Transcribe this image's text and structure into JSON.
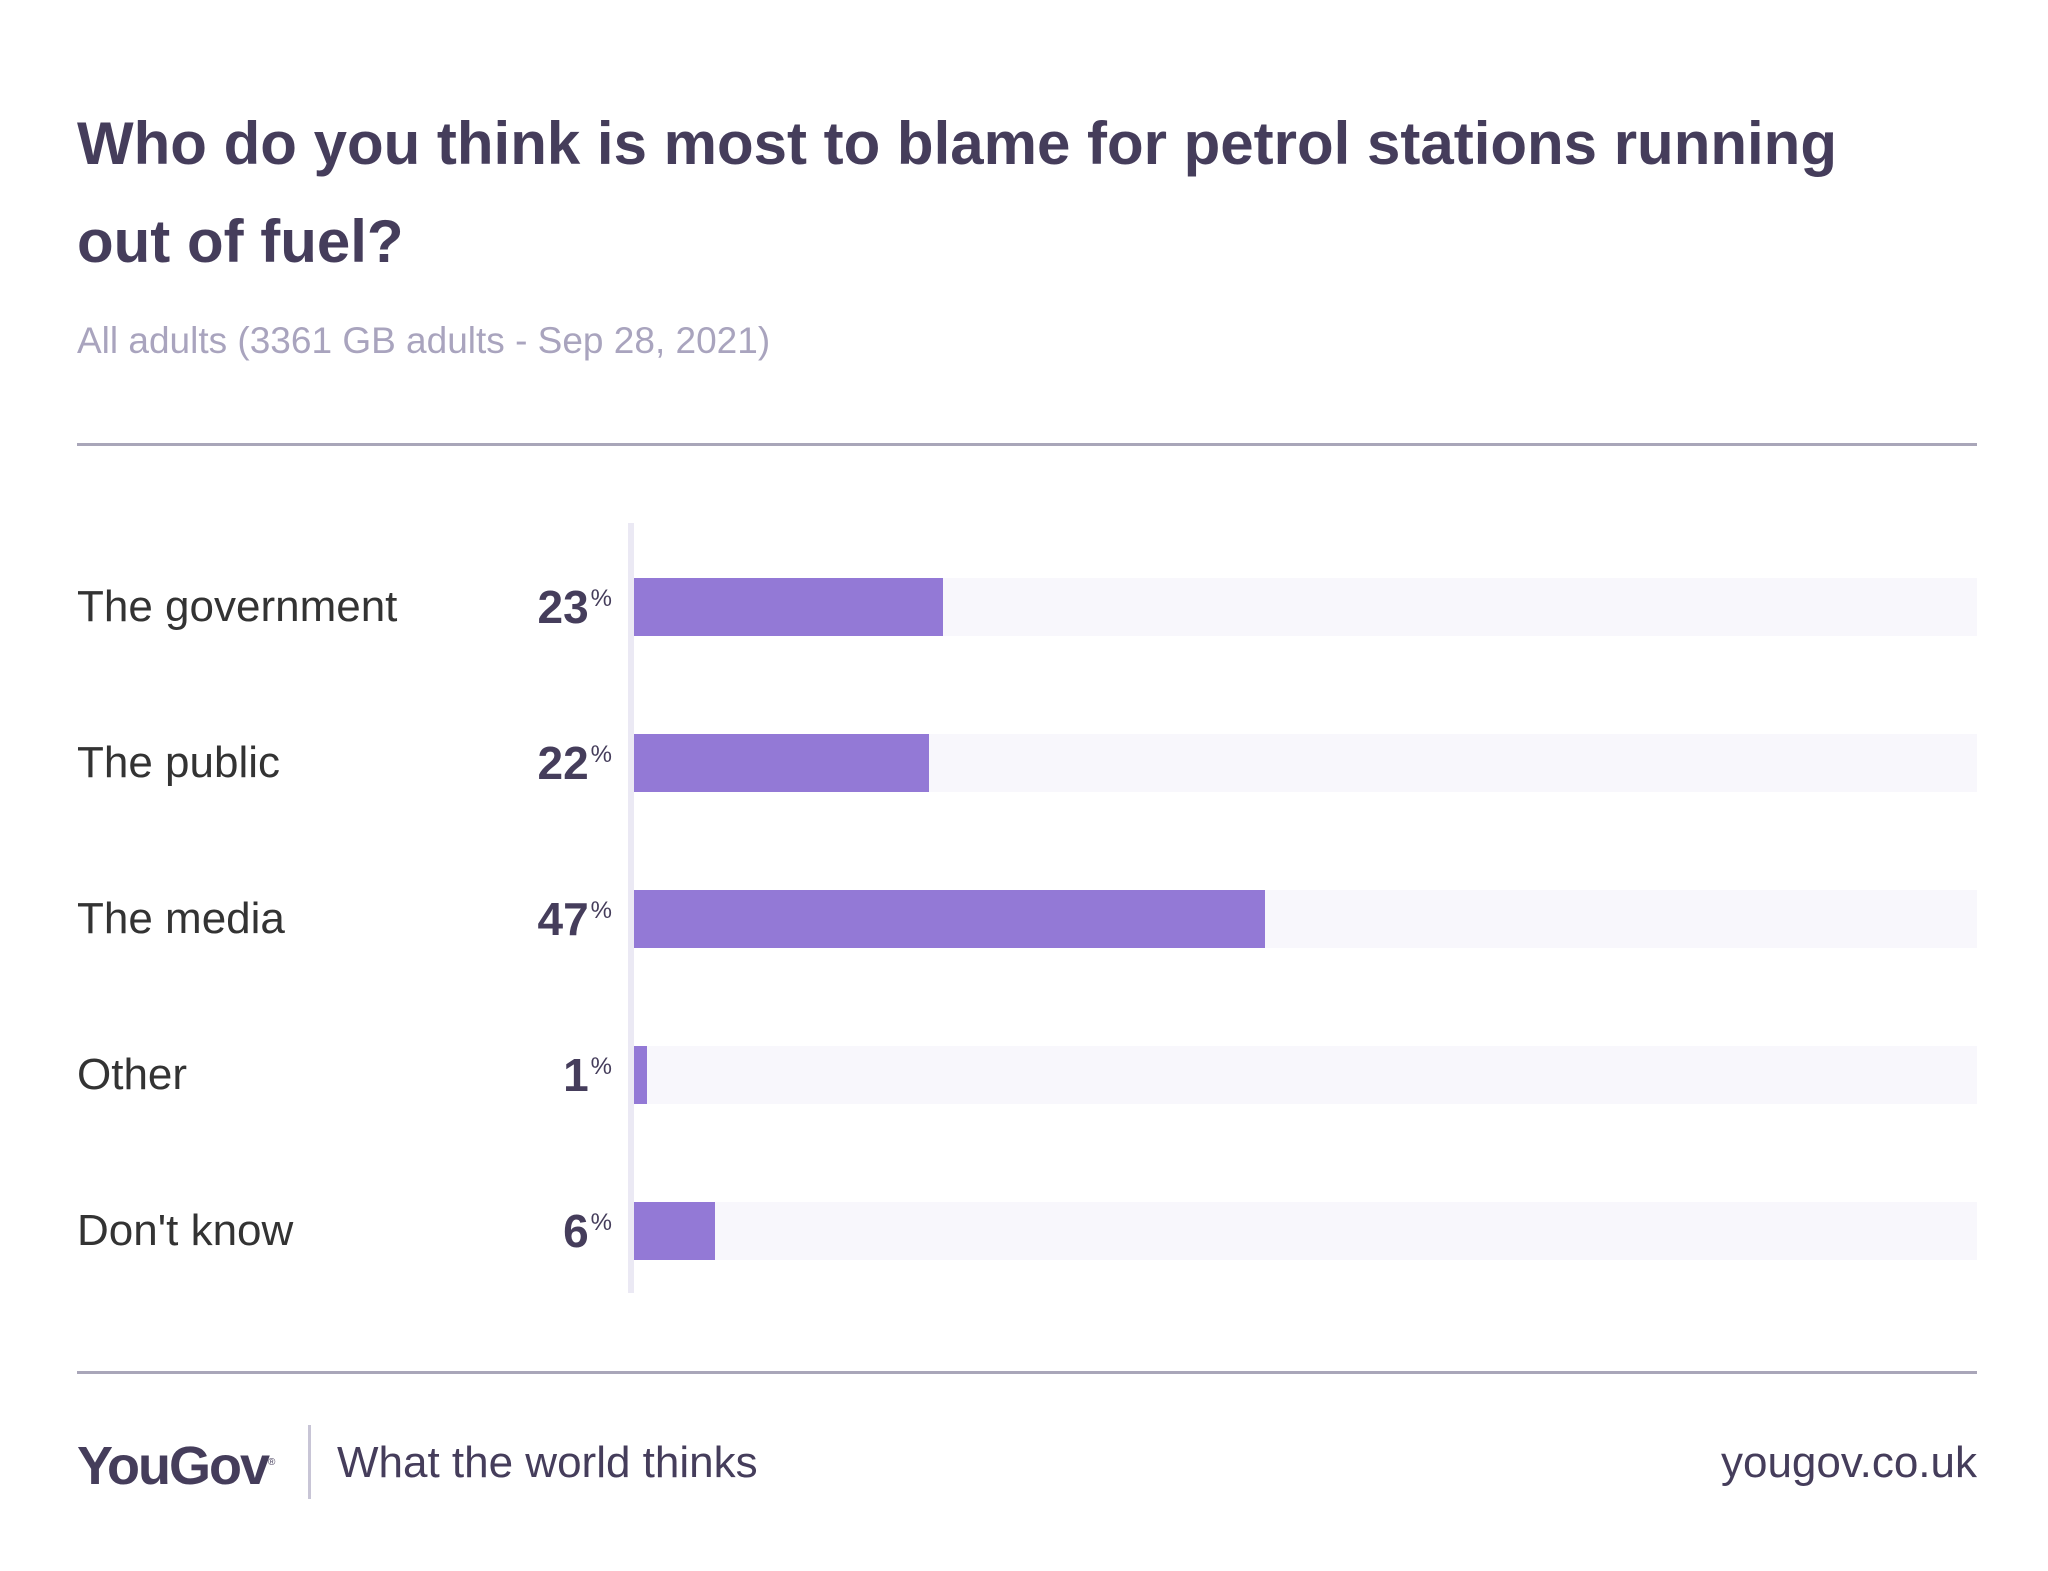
{
  "header": {
    "title": "Who do you think is most to blame for petrol stations running out of fuel?",
    "subtitle": "All adults (3361 GB adults - Sep 28, 2021)"
  },
  "chart_data": {
    "type": "bar",
    "orientation": "horizontal",
    "categories": [
      "The government",
      "The public",
      "The media",
      "Other",
      "Don't know"
    ],
    "values": [
      23,
      22,
      47,
      1,
      6
    ],
    "value_labels": [
      "23",
      "22",
      "47",
      "1",
      "6"
    ],
    "unit": "%",
    "xlim": [
      0,
      100
    ],
    "grid": false,
    "colors": {
      "bar": "#9379d6",
      "track": "#f8f7fc"
    }
  },
  "footer": {
    "logo": "YouGov",
    "tagline": "What the world thinks",
    "url": "yougov.co.uk"
  }
}
